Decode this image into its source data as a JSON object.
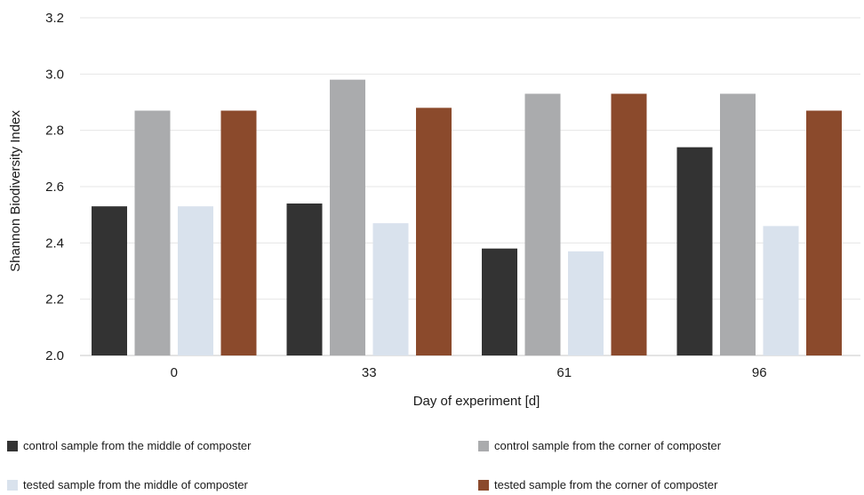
{
  "chart_data": {
    "type": "bar",
    "categories": [
      "0",
      "33",
      "61",
      "96"
    ],
    "series": [
      {
        "name": "control sample from the middle of composter",
        "values": [
          2.53,
          2.54,
          2.38,
          2.74
        ],
        "color": "#333333"
      },
      {
        "name": "control sample from the corner of composter",
        "values": [
          2.87,
          2.98,
          2.93,
          2.93
        ],
        "color": "#aaabad"
      },
      {
        "name": "tested sample from the middle of composter",
        "values": [
          2.53,
          2.47,
          2.37,
          2.46
        ],
        "color": "#d9e2ed"
      },
      {
        "name": "tested sample from the corner of composter",
        "values": [
          2.87,
          2.88,
          2.93,
          2.87
        ],
        "color": "#8b4a2c"
      }
    ],
    "xlabel": "Day of experiment [d]",
    "ylabel": "Shannon Biodiversity Index",
    "ylim": [
      2.0,
      3.2
    ],
    "yticks": [
      "2.0",
      "2.2",
      "2.4",
      "2.6",
      "2.8",
      "3.0",
      "3.2"
    ],
    "grid": true,
    "legend": "bottom"
  }
}
